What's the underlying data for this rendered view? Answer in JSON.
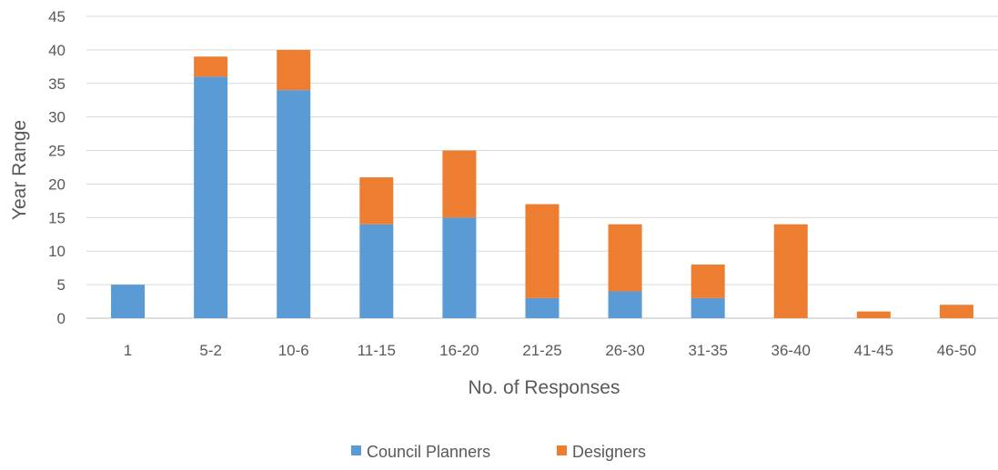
{
  "chart_data": {
    "type": "bar",
    "stacked": true,
    "categories": [
      "1",
      "5-2",
      "10-6",
      "11-15",
      "16-20",
      "21-25",
      "26-30",
      "31-35",
      "36-40",
      "41-45",
      "46-50"
    ],
    "series": [
      {
        "name": "Council Planners",
        "color": "#5B9BD5",
        "values": [
          5,
          36,
          34,
          14,
          15,
          3,
          4,
          3,
          0,
          0,
          0
        ]
      },
      {
        "name": "Designers",
        "color": "#ED7D31",
        "values": [
          0,
          3,
          6,
          7,
          10,
          14,
          10,
          5,
          14,
          1,
          2
        ]
      }
    ],
    "xlabel": "No. of Responses",
    "ylabel": "Year Range",
    "ylim": [
      0,
      45
    ],
    "ytick_step": 5,
    "grid": true,
    "legend_position": "bottom"
  }
}
